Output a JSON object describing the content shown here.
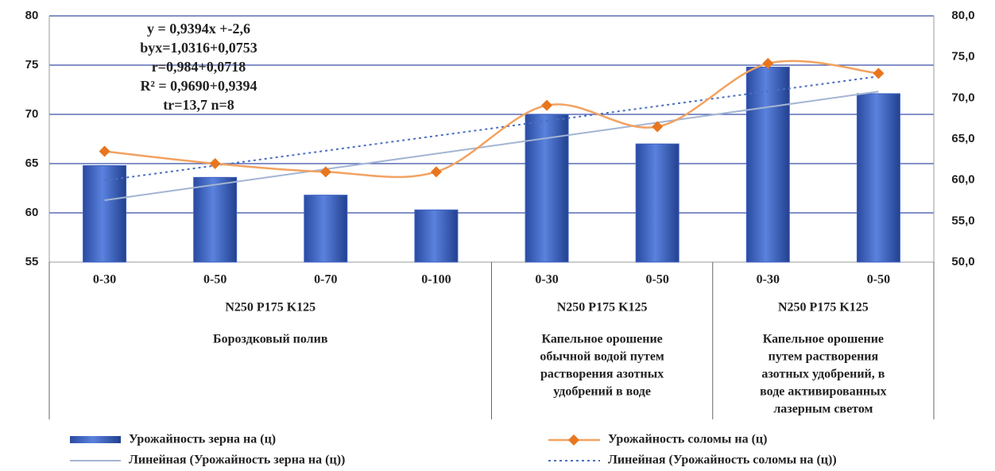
{
  "chart_data": {
    "type": "bar_line",
    "groups": [
      {
        "categories": [
          "0-30",
          "0-50",
          "0-70",
          "0-100"
        ],
        "fertilizer": "N250 P175 K125",
        "irrigation": [
          "Бороздковый полив"
        ]
      },
      {
        "categories": [
          "0-30",
          "0-50"
        ],
        "fertilizer": "N250 P175 K125",
        "irrigation": [
          "Капельное орошение",
          "обычной водой путем",
          "растворения азотных",
          "удобрений в воде"
        ]
      },
      {
        "categories": [
          "0-30",
          "0-50"
        ],
        "fertilizer": "N250 P175 K125",
        "irrigation": [
          "Капельное орошение",
          "путем растворения",
          "азотных удобрений, в",
          "воде активированных",
          "лазерным светом"
        ]
      }
    ],
    "series": [
      {
        "name": "Урожайность зерна на (ц)",
        "color": "#3d62c4",
        "axis": "y",
        "values": [
          64.8,
          63.6,
          61.8,
          60.3,
          70.0,
          67.0,
          74.8,
          72.1
        ],
        "trend_name": "Линейная (Урожайность зерна на (ц))",
        "trend_color": "#a3b5d2"
      },
      {
        "name": "Урожайность соломы на (ц)",
        "color": "#f2a261",
        "marker_color": "#e8761e",
        "axis": "y2",
        "values": [
          63.5,
          62.0,
          61.0,
          61.0,
          69.1,
          66.5,
          74.2,
          73.0
        ],
        "trend_name": "Линейная (Урожайность соломы на (ц))",
        "trend_color": "#4a6fc0"
      }
    ],
    "annotation": [
      "y = 0,9394x +-2,6",
      "byx=1,0316+0,0753",
      "r=0,984+0,0718",
      "R² = 0,9690+0,9394",
      "tr=13,7 n=8"
    ],
    "ylim": [
      55,
      80
    ],
    "yticks": [
      55,
      60,
      65,
      70,
      75,
      80
    ],
    "y2lim": [
      50,
      80
    ],
    "y2ticks": [
      {
        "value": 50,
        "label": "50,0"
      },
      {
        "value": 55,
        "label": "55,0"
      },
      {
        "value": 60,
        "label": "60,0"
      },
      {
        "value": 65,
        "label": "65,0"
      },
      {
        "value": 70,
        "label": "70,0"
      },
      {
        "value": 75,
        "label": "75,0"
      },
      {
        "value": 80,
        "label": "80,0"
      }
    ],
    "grid": true
  }
}
